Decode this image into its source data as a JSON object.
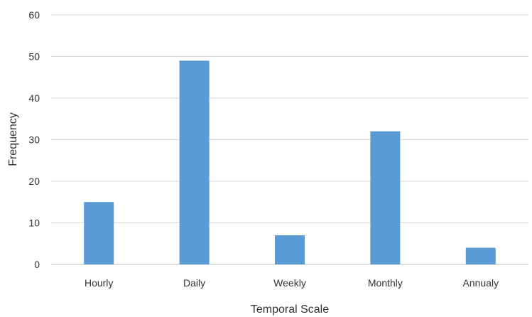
{
  "chart_data": {
    "type": "bar",
    "categories": [
      "Hourly",
      "Daily",
      "Weekly",
      "Monthly",
      "Annualy"
    ],
    "values": [
      15,
      49,
      7,
      32,
      4
    ],
    "xlabel": "Temporal Scale",
    "ylabel": "Frequency",
    "ylim": [
      0,
      60
    ],
    "yticks": [
      0,
      10,
      20,
      30,
      40,
      50,
      60
    ],
    "grid": true,
    "legend": "none",
    "bar_color": "#5b9bd5"
  }
}
